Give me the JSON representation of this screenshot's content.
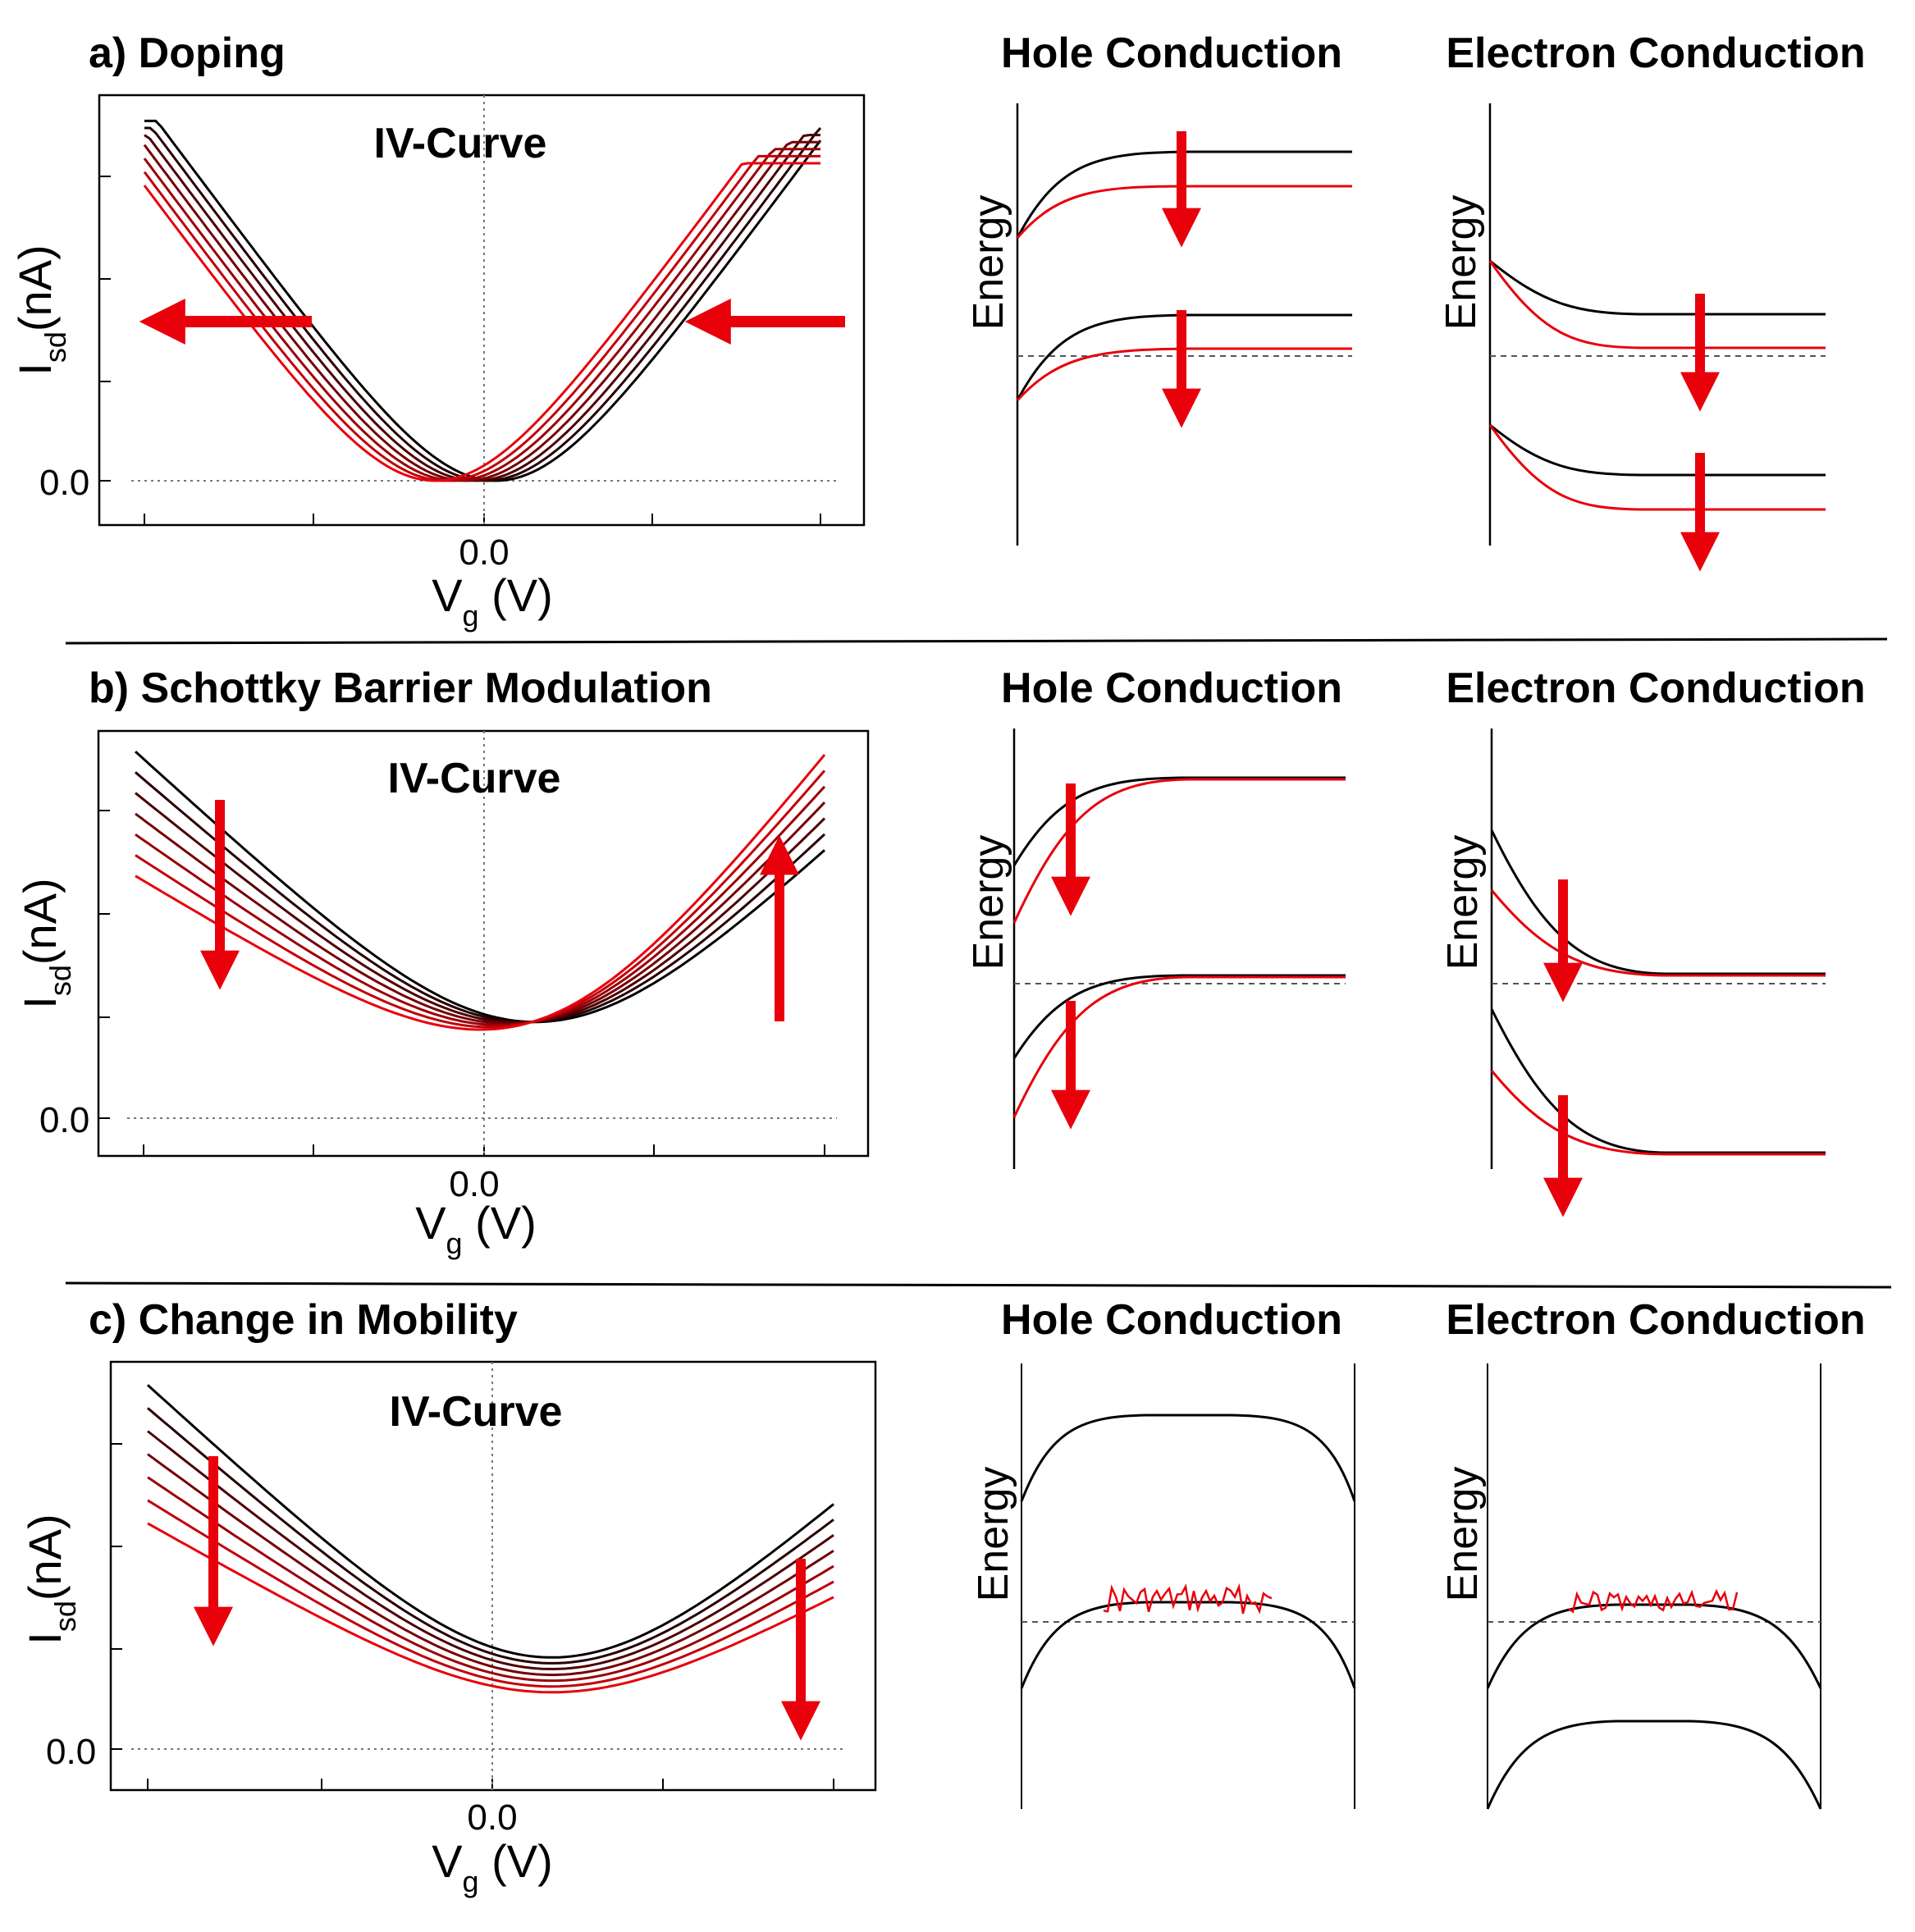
{
  "colors": {
    "ink": "#000000",
    "accent": "#e8000b",
    "guide": "#555555"
  },
  "panels": [
    {
      "key": "a",
      "title": "a) Doping",
      "effect": "doping",
      "iv": {
        "title": "IV-Curve",
        "ylabel": {
          "main": "I",
          "sub": "sd",
          "unit": "(nA)"
        },
        "xlabel": {
          "main": "V",
          "sub": "g",
          "unit": " (V)"
        },
        "x_tick": "0.0",
        "y_tick": "0.0",
        "curve_count": 7,
        "arrows": [
          "left",
          "left"
        ]
      },
      "hole": {
        "title": "Hole Conduction",
        "ylabel": "Energy",
        "arrows": [
          "down",
          "down"
        ]
      },
      "electron": {
        "title": "Electron Conduction",
        "ylabel": "Energy",
        "arrows": [
          "down",
          "down"
        ]
      }
    },
    {
      "key": "b",
      "title": "b) Schottky Barrier Modulation",
      "effect": "schottky",
      "iv": {
        "title": "IV-Curve",
        "ylabel": {
          "main": "I",
          "sub": "sd",
          "unit": "(nA)"
        },
        "xlabel": {
          "main": "V",
          "sub": "g",
          "unit": " (V)"
        },
        "x_tick": "0.0",
        "y_tick": "0.0",
        "curve_count": 7,
        "arrows": [
          "down",
          "up"
        ]
      },
      "hole": {
        "title": "Hole Conduction",
        "ylabel": "Energy",
        "arrows": [
          "down",
          "down"
        ]
      },
      "electron": {
        "title": "Electron Conduction",
        "ylabel": "Energy",
        "arrows": [
          "down",
          "down"
        ]
      }
    },
    {
      "key": "c",
      "title": "c) Change in Mobility",
      "effect": "mobility",
      "iv": {
        "title": "IV-Curve",
        "ylabel": {
          "main": "I",
          "sub": "sd",
          "unit": "(nA)"
        },
        "xlabel": {
          "main": "V",
          "sub": "g",
          "unit": " (V)"
        },
        "x_tick": "0.0",
        "y_tick": "0.0",
        "curve_count": 7,
        "arrows": [
          "down",
          "down"
        ]
      },
      "hole": {
        "title": "Hole Conduction",
        "ylabel": "Energy",
        "arrows": []
      },
      "electron": {
        "title": "Electron Conduction",
        "ylabel": "Energy",
        "arrows": []
      }
    }
  ]
}
